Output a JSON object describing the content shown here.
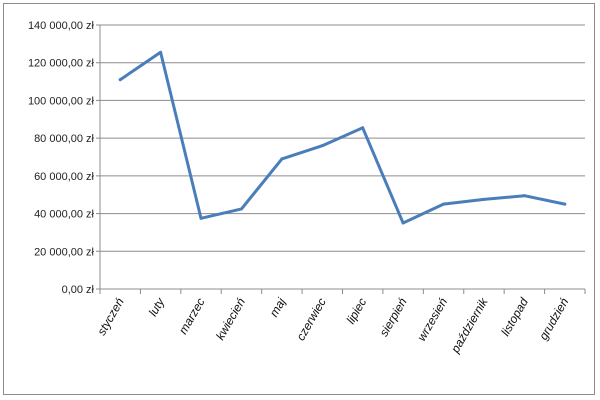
{
  "chart_data": {
    "type": "line",
    "title": "",
    "xlabel": "",
    "ylabel": "",
    "categories": [
      "styczeń",
      "luty",
      "marzec",
      "kwiecień",
      "maj",
      "czerwiec",
      "lipiec",
      "sierpień",
      "wrzesień",
      "październik",
      "listopad",
      "grudzień"
    ],
    "series": [
      {
        "values": [
          111000,
          125500,
          37500,
          42500,
          69000,
          76000,
          85500,
          35000,
          45000,
          47500,
          49500,
          45000
        ]
      }
    ],
    "ylim": [
      0,
      140000
    ],
    "yticks": [
      0,
      20000,
      40000,
      60000,
      80000,
      100000,
      120000,
      140000
    ],
    "ytick_labels": [
      "0,00 zł",
      "20 000,00 zł",
      "40 000,00 zł",
      "60 000,00 zł",
      "80 000,00 zł",
      "100 000,00 zł",
      "120 000,00 zł",
      "140 000,00 zł"
    ],
    "grid": true,
    "legend": "none",
    "colors": {
      "line": "#4a7ebb",
      "grid": "#8c8c8c",
      "axis": "#8c8c8c"
    }
  }
}
